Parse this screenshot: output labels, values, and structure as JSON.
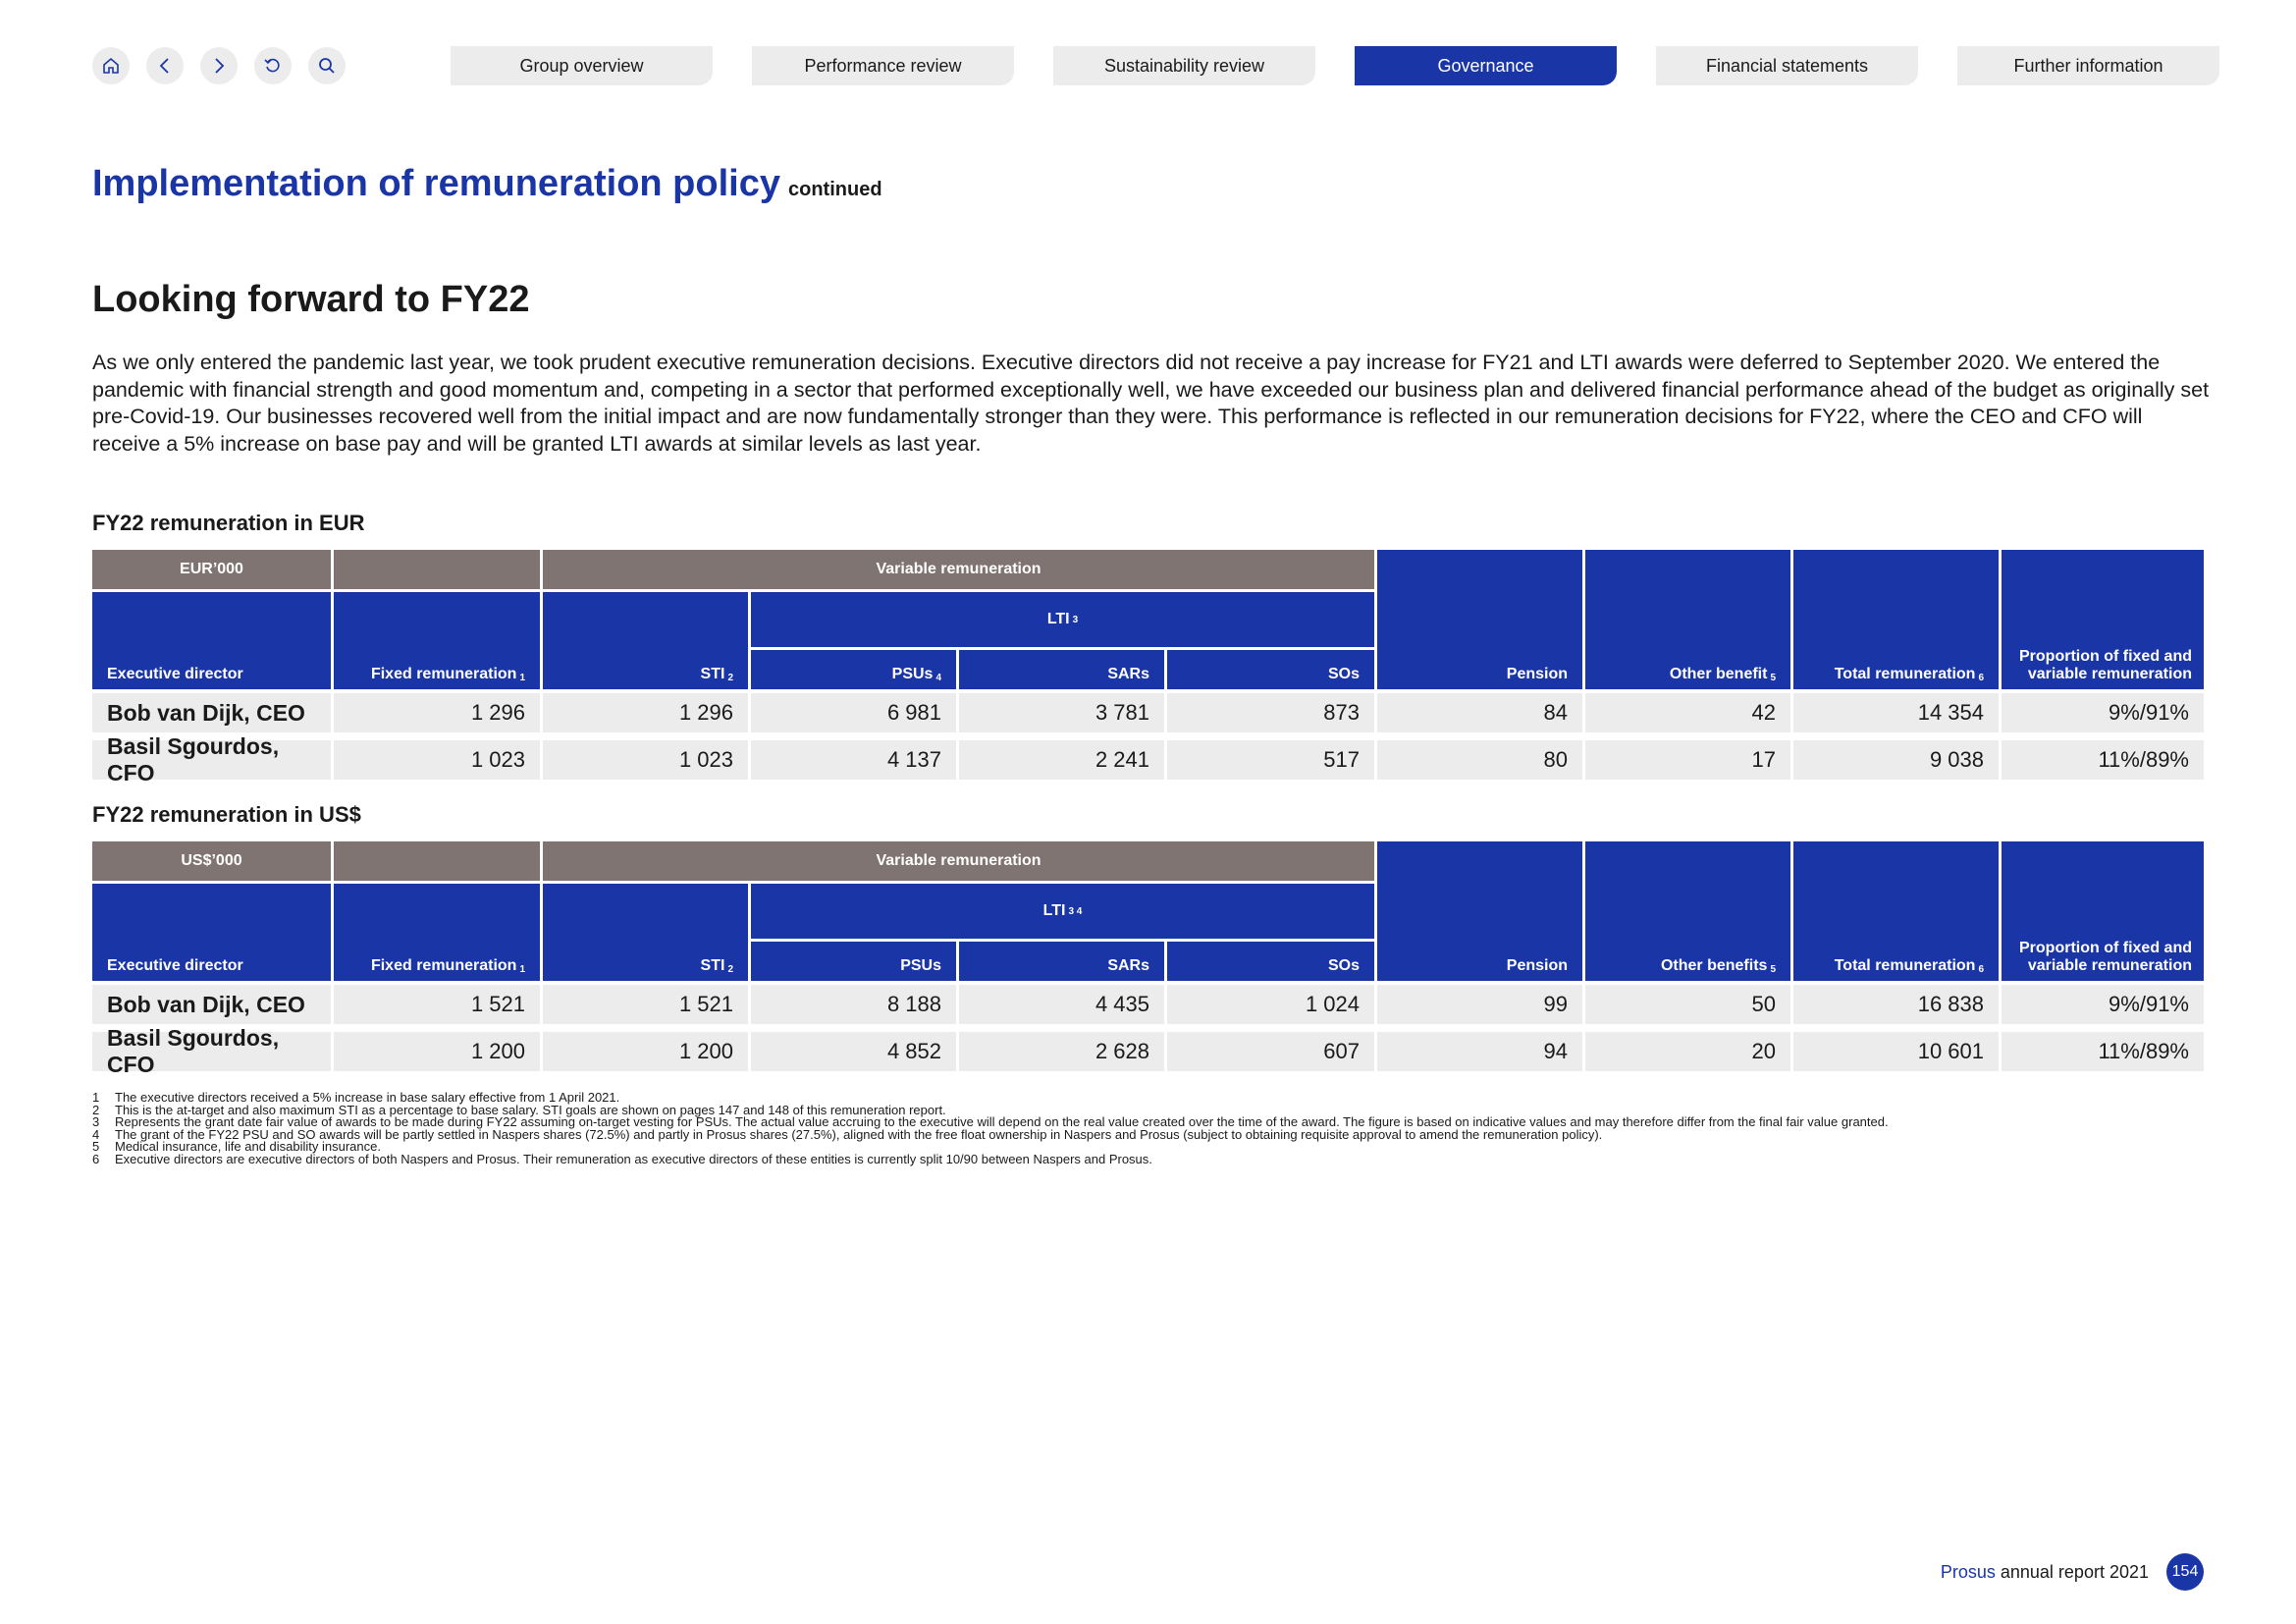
{
  "nav": {
    "icons": [
      "home-icon",
      "back-icon",
      "forward-icon",
      "undo-icon",
      "search-icon"
    ],
    "tabs": [
      "Group overview",
      "Performance review",
      "Sustainability review",
      "Governance",
      "Financial statements",
      "Further information"
    ],
    "active_tab": "Governance"
  },
  "header": {
    "title": "Implementation of remuneration policy",
    "continued": "continued",
    "subtitle": "Looking forward to FY22"
  },
  "intro": "As we only entered the pandemic last year, we took prudent executive remuneration decisions. Executive directors did not receive a pay increase for FY21 and LTI awards were deferred to September 2020. We entered the pandemic with financial strength and good momentum and, competing in a sector that performed exceptionally well, we have exceeded our business plan and delivered financial performance ahead of the budget as originally set pre-Covid-19. Our businesses recovered well from the initial impact and are now fundamentally stronger than they were. This performance is reflected in our remuneration decisions for FY22, where the CEO and CFO will receive a 5% increase on base pay and will be granted LTI awards at similar levels as last year.",
  "tables": {
    "eur": {
      "title": "FY22 remuneration in EUR",
      "unit": "EUR’000",
      "variable": "Variable remuneration",
      "lti": "LTI",
      "lti_sup": "3",
      "headers": {
        "director": "Executive director",
        "fixed": "Fixed remuneration",
        "fixed_sup": "1",
        "sti": "STI",
        "sti_sup": "2",
        "psus": "PSUs",
        "psus_sup": "4",
        "sars": "SARs",
        "sos": "SOs",
        "pension": "Pension",
        "other": "Other benefit",
        "other_sup": "5",
        "total": "Total remuneration",
        "total_sup": "6",
        "proportion_1": "Proportion of fixed and",
        "proportion_2": "variable remuneration"
      },
      "rows": [
        {
          "name": "Bob van Dijk, CEO",
          "fixed": "1 296",
          "sti": "1 296",
          "psus": "6 981",
          "sars": "3 781",
          "sos": "873",
          "pension": "84",
          "other": "42",
          "total": "14 354",
          "proportion": "9%/91%"
        },
        {
          "name": "Basil Sgourdos, CFO",
          "fixed": "1 023",
          "sti": "1 023",
          "psus": "4 137",
          "sars": "2 241",
          "sos": "517",
          "pension": "80",
          "other": "17",
          "total": "9 038",
          "proportion": "11%/89%"
        }
      ]
    },
    "usd": {
      "title": "FY22 remuneration in US$",
      "unit": "US$’000",
      "variable": "Variable remuneration",
      "lti": "LTI",
      "lti_sup": "3 4",
      "headers": {
        "director": "Executive director",
        "fixed": "Fixed remuneration",
        "fixed_sup": "1",
        "sti": "STI",
        "sti_sup": "2",
        "psus": "PSUs",
        "psus_sup": "",
        "sars": "SARs",
        "sos": "SOs",
        "pension": "Pension",
        "other": "Other benefits",
        "other_sup": "5",
        "total": "Total remuneration",
        "total_sup": "6",
        "proportion_1": "Proportion of fixed and",
        "proportion_2": "variable remuneration"
      },
      "rows": [
        {
          "name": "Bob van Dijk, CEO",
          "fixed": "1 521",
          "sti": "1 521",
          "psus": "8 188",
          "sars": "4 435",
          "sos": "1 024",
          "pension": "99",
          "other": "50",
          "total": "16 838",
          "proportion": "9%/91%"
        },
        {
          "name": "Basil Sgourdos, CFO",
          "fixed": "1 200",
          "sti": "1 200",
          "psus": "4 852",
          "sars": "2 628",
          "sos": "607",
          "pension": "94",
          "other": "20",
          "total": "10 601",
          "proportion": "11%/89%"
        }
      ]
    }
  },
  "footnotes": [
    {
      "n": "1",
      "text": "The executive directors received a 5% increase in base salary effective from 1 April 2021."
    },
    {
      "n": "2",
      "text": "This is the at-target and also maximum STI as a percentage to base salary. STI goals are shown on pages 147 and 148 of this remuneration report."
    },
    {
      "n": "3",
      "text": "Represents the grant date fair value of awards to be made during FY22 assuming on-target vesting for PSUs. The actual value accruing to the executive will depend on the real value created over the time of the award. The figure is based on indicative values and may therefore differ from the final fair value granted."
    },
    {
      "n": "4",
      "text": "The grant of the FY22 PSU and SO awards will be partly settled in Naspers shares (72.5%) and partly in Prosus shares (27.5%), aligned with the free float ownership in Naspers and Prosus (subject to obtaining requisite approval to amend the remuneration policy)."
    },
    {
      "n": "5",
      "text": "Medical insurance, life and disability insurance."
    },
    {
      "n": "6",
      "text": "Executive directors are executive directors of both Naspers and Prosus. Their remuneration as executive directors of these entities is currently split 10/90 between Naspers and Prosus."
    }
  ],
  "footer": {
    "brand": "Prosus",
    "report": "annual report 2021",
    "page": "154"
  }
}
